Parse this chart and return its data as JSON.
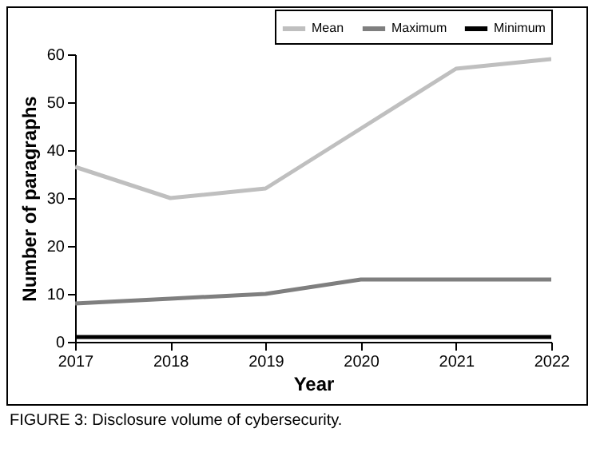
{
  "chart_data": {
    "type": "line",
    "xlabel": "Year",
    "ylabel": "Number of paragraphs",
    "annotations": [
      "FIGURE 3: Disclosure volume of cybersecurity."
    ],
    "x": [
      2017,
      2018,
      2019,
      2020,
      2021,
      2022
    ],
    "series": [
      {
        "name": "Mean",
        "color": "#bfbfbf",
        "values": [
          36.5,
          30,
          32,
          44.5,
          57,
          59
        ]
      },
      {
        "name": "Maximum",
        "color": "#7f7f7f",
        "values": [
          8,
          9,
          10,
          13,
          13,
          13
        ]
      },
      {
        "name": "Minimum",
        "color": "#000000",
        "values": [
          1,
          1,
          1,
          1,
          1,
          1
        ]
      }
    ],
    "xlim": [
      2017,
      2022
    ],
    "xticks": [
      2017,
      2018,
      2019,
      2020,
      2021,
      2022
    ],
    "ylim": [
      0,
      60
    ],
    "yticks": [
      0,
      10,
      20,
      30,
      40,
      50,
      60
    ],
    "grid": false,
    "legend": "top right",
    "marker": "none",
    "line_style": "solid"
  }
}
